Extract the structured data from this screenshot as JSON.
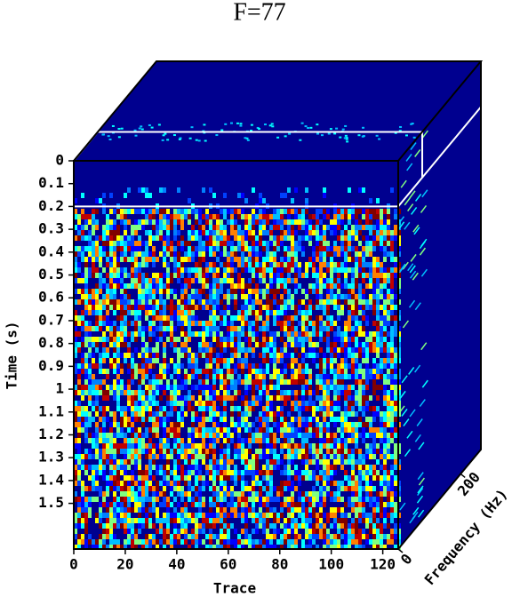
{
  "chart_data": {
    "type": "cube",
    "title": "F=77",
    "x_label": "Trace",
    "y_label": "Time (s)",
    "z_label": "Frequency (Hz)",
    "xlim": [
      0,
      126
    ],
    "xticks": [
      0,
      20,
      40,
      60,
      80,
      100,
      120
    ],
    "ylim": [
      0,
      1.7
    ],
    "yticks": [
      0,
      0.1,
      0.2,
      0.3,
      0.4,
      0.5,
      0.6,
      0.7,
      0.8,
      0.9,
      1,
      1.1,
      1.2,
      1.3,
      1.4,
      1.5
    ],
    "zlim": [
      0,
      265
    ],
    "zticks": [
      0,
      200
    ],
    "time_slice": 0.2,
    "frequency_slice": 77
  }
}
